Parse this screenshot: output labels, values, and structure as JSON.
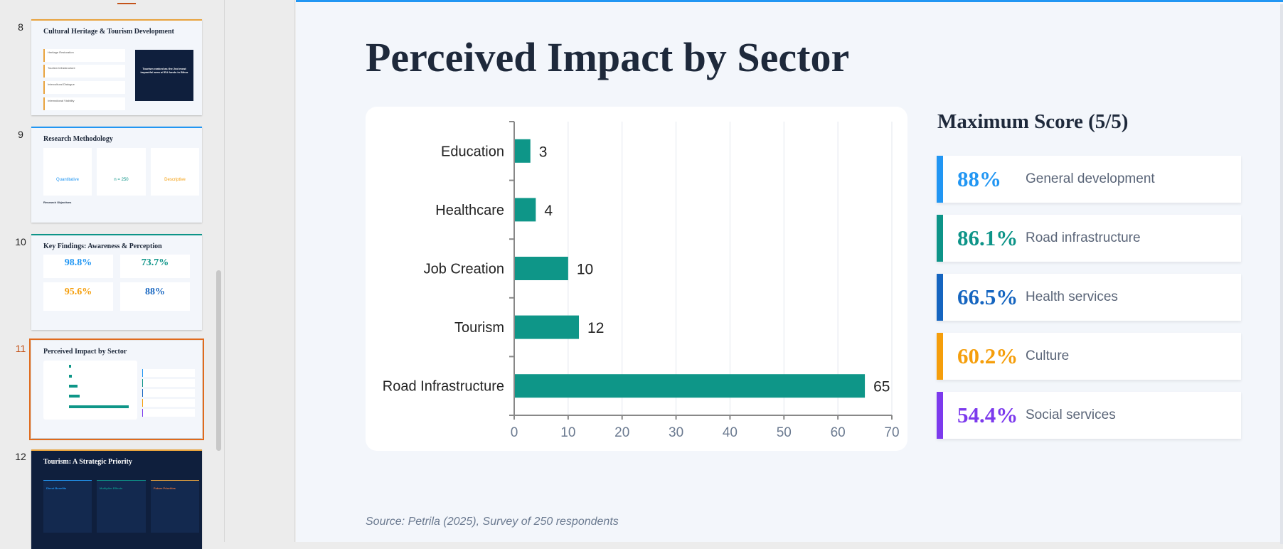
{
  "sidebar": {
    "slides": [
      {
        "number": "8",
        "title": "Cultural Heritage & Tourism Development",
        "items": [
          "Heritage Restoration",
          "Tourism Infrastructure",
          "Intercultural Dialogue",
          "International Visibility"
        ],
        "callout": "Tourism ranked as the 2nd most impactful area of EU funds in Bihor"
      },
      {
        "number": "9",
        "title": "Research Methodology",
        "items": [
          "Quantitative",
          "n = 250",
          "Descriptive"
        ],
        "footer": "Research Objectives"
      },
      {
        "number": "10",
        "title": "Key Findings: Awareness & Perception",
        "items": [
          "98.8%",
          "73.7%",
          "95.6%",
          "88%"
        ]
      },
      {
        "number": "11",
        "title": "Perceived Impact by Sector"
      },
      {
        "number": "12",
        "title": "Tourism: A Strategic Priority",
        "items": [
          "Direct Benefits",
          "Multiplier Effects",
          "Future Priorities"
        ]
      }
    ]
  },
  "slide": {
    "title": "Perceived Impact by Sector",
    "panel_title": "Maximum Score (5/5)",
    "scores": [
      {
        "value": "88%",
        "label": "General development",
        "color": "#2196f3"
      },
      {
        "value": "86.1%",
        "label": "Road infrastructure",
        "color": "#0d9488"
      },
      {
        "value": "66.5%",
        "label": "Health services",
        "color": "#1565c0"
      },
      {
        "value": "60.2%",
        "label": "Culture",
        "color": "#f59e0b"
      },
      {
        "value": "54.4%",
        "label": "Social services",
        "color": "#7c3aed"
      }
    ],
    "source": "Source: Petrila (2025), Survey of 250 respondents"
  },
  "chart_data": {
    "type": "bar",
    "orientation": "horizontal",
    "categories": [
      "Education",
      "Healthcare",
      "Job Creation",
      "Tourism",
      "Road Infrastructure"
    ],
    "values": [
      3,
      4,
      10,
      12,
      65
    ],
    "xlim": [
      0,
      70
    ],
    "xticks": [
      0,
      10,
      20,
      30,
      40,
      50,
      60,
      70
    ],
    "grid": true,
    "bar_color": "#0e9688"
  }
}
